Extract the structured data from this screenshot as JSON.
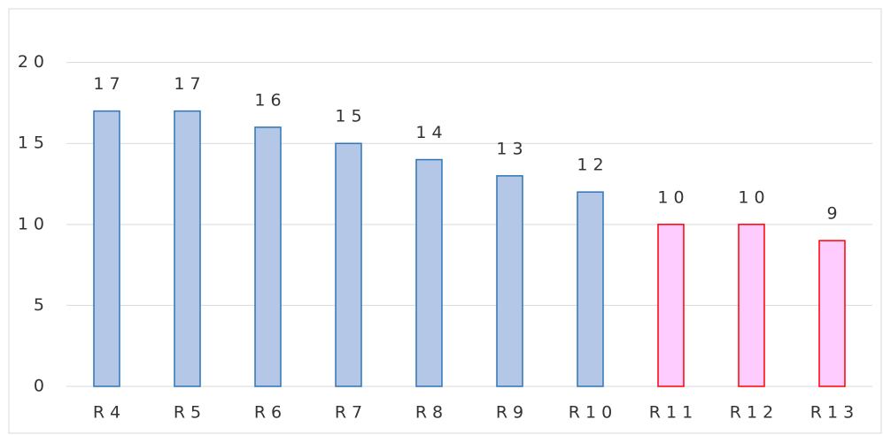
{
  "chart_data": {
    "type": "bar",
    "categories": [
      "R4",
      "R5",
      "R6",
      "R7",
      "R8",
      "R9",
      "R10",
      "R11",
      "R12",
      "R13"
    ],
    "values": [
      17,
      17,
      16,
      15,
      14,
      13,
      12,
      10,
      10,
      9
    ],
    "colors": [
      "#b4c7e7",
      "#b4c7e7",
      "#b4c7e7",
      "#b4c7e7",
      "#b4c7e7",
      "#b4c7e7",
      "#b4c7e7",
      "#ffccff",
      "#ffccff",
      "#ffccff"
    ],
    "edge_colors": [
      "#2e75b6",
      "#2e75b6",
      "#2e75b6",
      "#2e75b6",
      "#2e75b6",
      "#2e75b6",
      "#2e75b6",
      "#ff0000",
      "#ff0000",
      "#ff0000"
    ],
    "ylim": [
      0,
      22
    ],
    "yticks": [
      0,
      5,
      10,
      15,
      20
    ],
    "grid": true
  }
}
